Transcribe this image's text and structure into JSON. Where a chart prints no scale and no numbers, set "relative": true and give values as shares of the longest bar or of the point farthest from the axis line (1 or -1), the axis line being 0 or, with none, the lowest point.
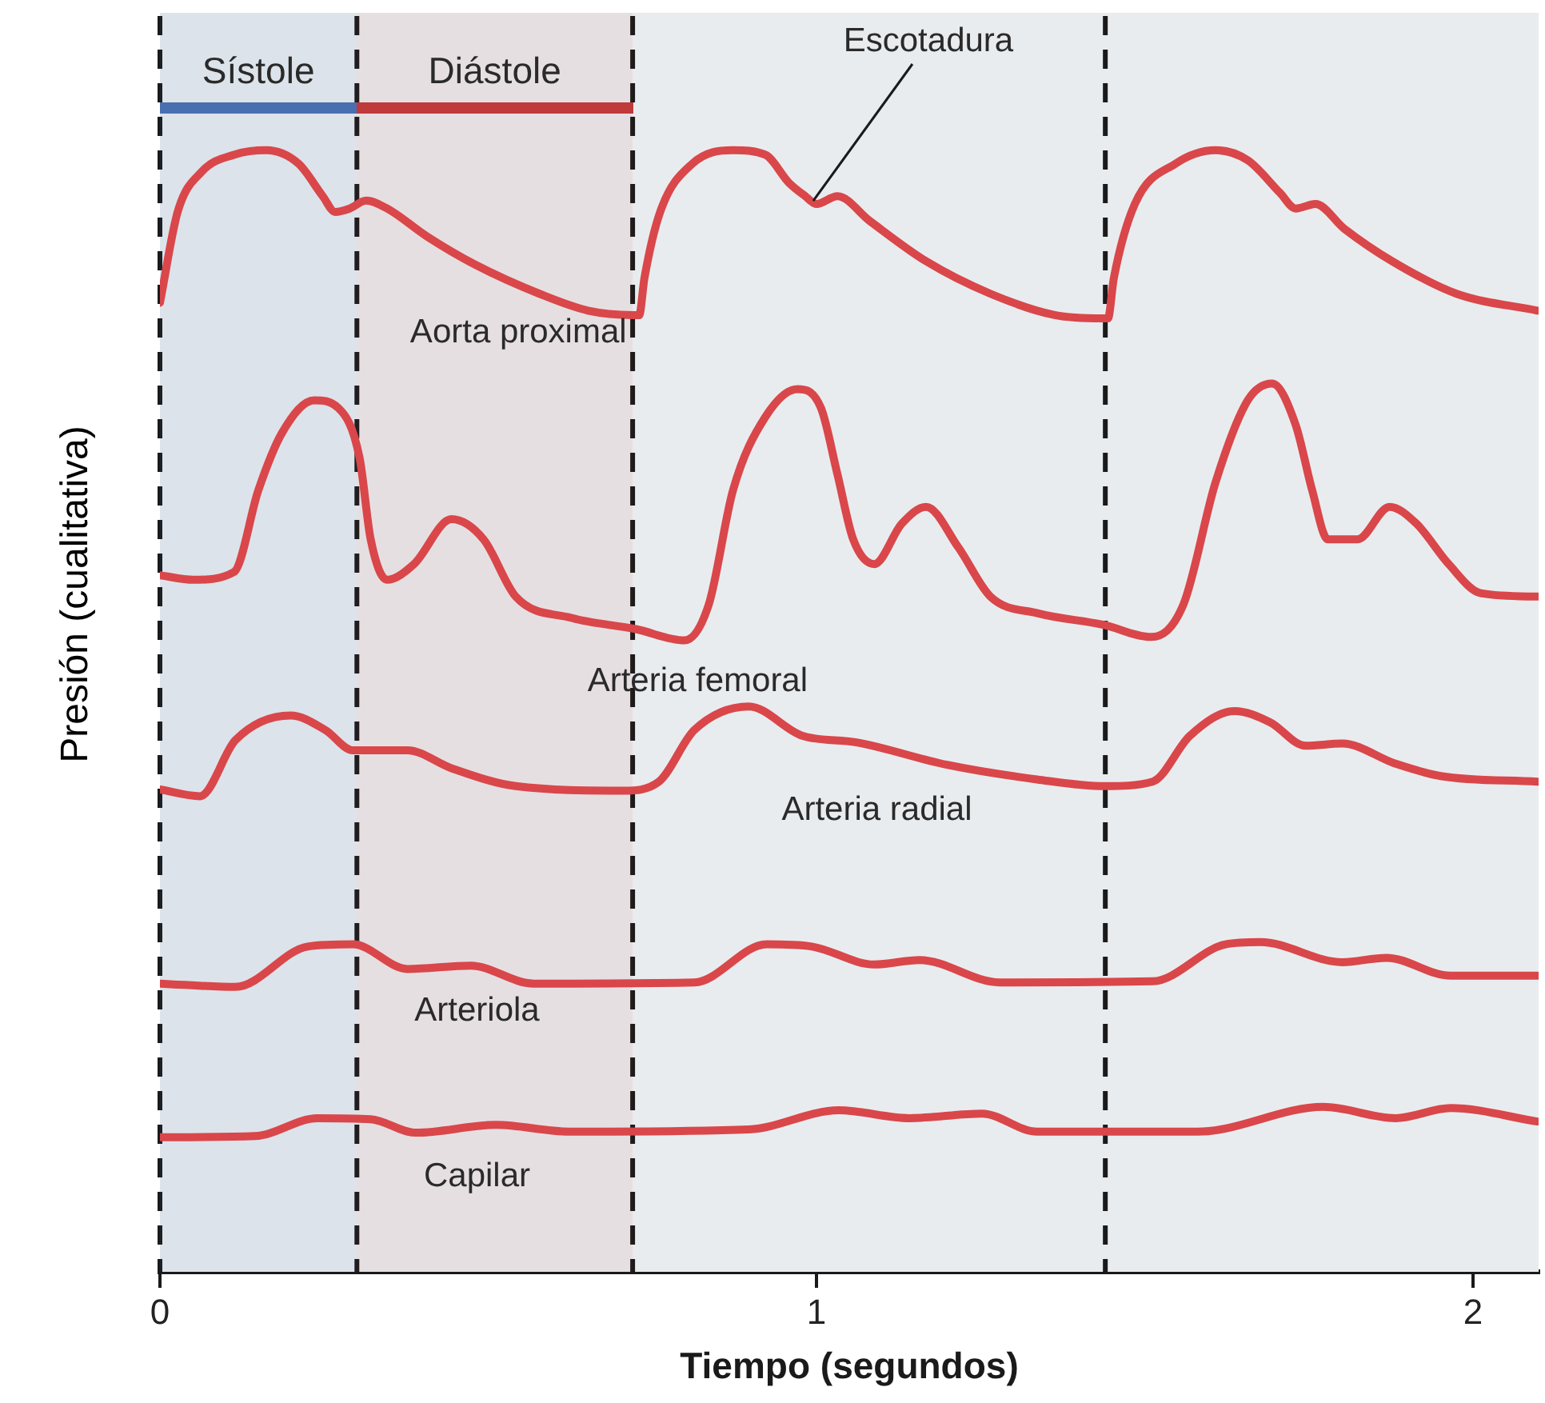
{
  "chart_data": {
    "type": "line",
    "relative": true,
    "xlabel": "Tiempo (segundos)",
    "ylabel": "Presión (cualitativa)",
    "xlim": [
      0,
      2.1
    ],
    "xticks": [
      0,
      1,
      2
    ],
    "grid": false,
    "legend": false,
    "marker": "none",
    "line_style": "solid",
    "series": [
      {
        "name": "Aorta proximal",
        "color": "#d9474a",
        "x": [
          0,
          0.027,
          0.064,
          0.113,
          0.162,
          0.211,
          0.248,
          0.267,
          0.289,
          0.314,
          0.346,
          0.407,
          0.48,
          0.578,
          0.652,
          0.721,
          0.73,
          0.738,
          0.762,
          0.811,
          0.873,
          0.922,
          0.958,
          0.983,
          1,
          1.032,
          1.081,
          1.167,
          1.265,
          1.363,
          1.436,
          1.444,
          1.453,
          1.485,
          1.547,
          1.608,
          1.657,
          1.706,
          1.73,
          1.76,
          1.804,
          1.877,
          1.975,
          2.098
        ],
        "values": [
          0.864,
          0.945,
          0.981,
          0.996,
          1,
          0.988,
          0.959,
          0.945,
          0.948,
          0.955,
          0.948,
          0.923,
          0.898,
          0.872,
          0.857,
          0.853,
          0.853,
          0.886,
          0.945,
          0.988,
          1,
          0.996,
          0.971,
          0.959,
          0.952,
          0.959,
          0.937,
          0.901,
          0.872,
          0.853,
          0.85,
          0.85,
          0.886,
          0.952,
          0.988,
          1,
          0.991,
          0.962,
          0.948,
          0.952,
          0.93,
          0.901,
          0.872,
          0.857
        ]
      },
      {
        "name": "Arteria femoral",
        "color": "#d9474a",
        "x": [
          0,
          0.051,
          0.113,
          0.15,
          0.186,
          0.235,
          0.272,
          0.304,
          0.321,
          0.346,
          0.387,
          0.444,
          0.493,
          0.542,
          0.627,
          0.725,
          0.799,
          0.836,
          0.873,
          0.922,
          0.971,
          1.007,
          1.032,
          1.056,
          1.088,
          1.13,
          1.167,
          1.216,
          1.265,
          1.338,
          1.436,
          1.51,
          1.559,
          1.608,
          1.657,
          1.694,
          1.73,
          1.755,
          1.779,
          1.824,
          1.873,
          1.914,
          1.963,
          2.012,
          2.098
        ],
        "values": [
          0.621,
          0.617,
          0.624,
          0.697,
          0.748,
          0.777,
          0.77,
          0.726,
          0.653,
          0.617,
          0.631,
          0.671,
          0.653,
          0.602,
          0.583,
          0.573,
          0.563,
          0.595,
          0.697,
          0.762,
          0.787,
          0.77,
          0.711,
          0.653,
          0.631,
          0.667,
          0.682,
          0.646,
          0.602,
          0.587,
          0.577,
          0.566,
          0.595,
          0.704,
          0.777,
          0.792,
          0.755,
          0.697,
          0.653,
          0.653,
          0.682,
          0.667,
          0.631,
          0.605,
          0.602
        ]
      },
      {
        "name": "Arteria radial",
        "color": "#d9474a",
        "x": [
          0,
          0.061,
          0.115,
          0.199,
          0.252,
          0.294,
          0.377,
          0.444,
          0.542,
          0.706,
          0.76,
          0.814,
          0.897,
          0.978,
          1.061,
          1.199,
          1.336,
          1.439,
          1.512,
          1.569,
          1.637,
          1.691,
          1.745,
          1.801,
          1.882,
          1.951,
          2.098
        ],
        "values": [
          0.43,
          0.424,
          0.474,
          0.496,
          0.483,
          0.465,
          0.465,
          0.449,
          0.433,
          0.429,
          0.437,
          0.483,
          0.504,
          0.478,
          0.472,
          0.452,
          0.439,
          0.433,
          0.437,
          0.478,
          0.5,
          0.49,
          0.469,
          0.471,
          0.453,
          0.442,
          0.437
        ]
      },
      {
        "name": "Arteriola",
        "color": "#d9474a",
        "x": [
          0,
          0.115,
          0.225,
          0.294,
          0.377,
          0.473,
          0.569,
          0.814,
          0.924,
          0.993,
          1.088,
          1.157,
          1.279,
          1.512,
          1.623,
          1.676,
          1.801,
          1.868,
          1.966,
          2.098
        ],
        "values": [
          0.257,
          0.254,
          0.29,
          0.292,
          0.27,
          0.273,
          0.257,
          0.258,
          0.292,
          0.29,
          0.274,
          0.278,
          0.258,
          0.259,
          0.292,
          0.294,
          0.276,
          0.28,
          0.264,
          0.264
        ]
      },
      {
        "name": "Capilar",
        "color": "#d9474a",
        "x": [
          0,
          0.145,
          0.24,
          0.321,
          0.39,
          0.512,
          0.623,
          0.897,
          1.034,
          1.142,
          1.252,
          1.336,
          1.581,
          1.772,
          1.882,
          1.966,
          2.098
        ],
        "values": [
          0.12,
          0.121,
          0.137,
          0.136,
          0.124,
          0.131,
          0.125,
          0.127,
          0.144,
          0.137,
          0.141,
          0.125,
          0.125,
          0.147,
          0.137,
          0.146,
          0.134
        ]
      }
    ],
    "ref_lines": [
      {
        "axis": "x",
        "value": 0,
        "color": "#1a1a1a",
        "line_style": "dashed"
      },
      {
        "axis": "x",
        "value": 0.3,
        "color": "#1a1a1a",
        "line_style": "dashed"
      },
      {
        "axis": "x",
        "value": 0.72,
        "color": "#1a1a1a",
        "line_style": "dashed"
      },
      {
        "axis": "x",
        "value": 1.44,
        "color": "#1a1a1a",
        "line_style": "dashed"
      }
    ],
    "bands": [
      {
        "axis": "x",
        "from": 0,
        "to": 0.3,
        "label": "Sístole",
        "color": "#4a6fb0"
      },
      {
        "axis": "x",
        "from": 0.3,
        "to": 0.72,
        "label": "Diástole",
        "color": "#c0393b"
      }
    ],
    "annotations": [
      {
        "text": "Escotadura",
        "x": 1,
        "y": 0.952
      }
    ]
  }
}
